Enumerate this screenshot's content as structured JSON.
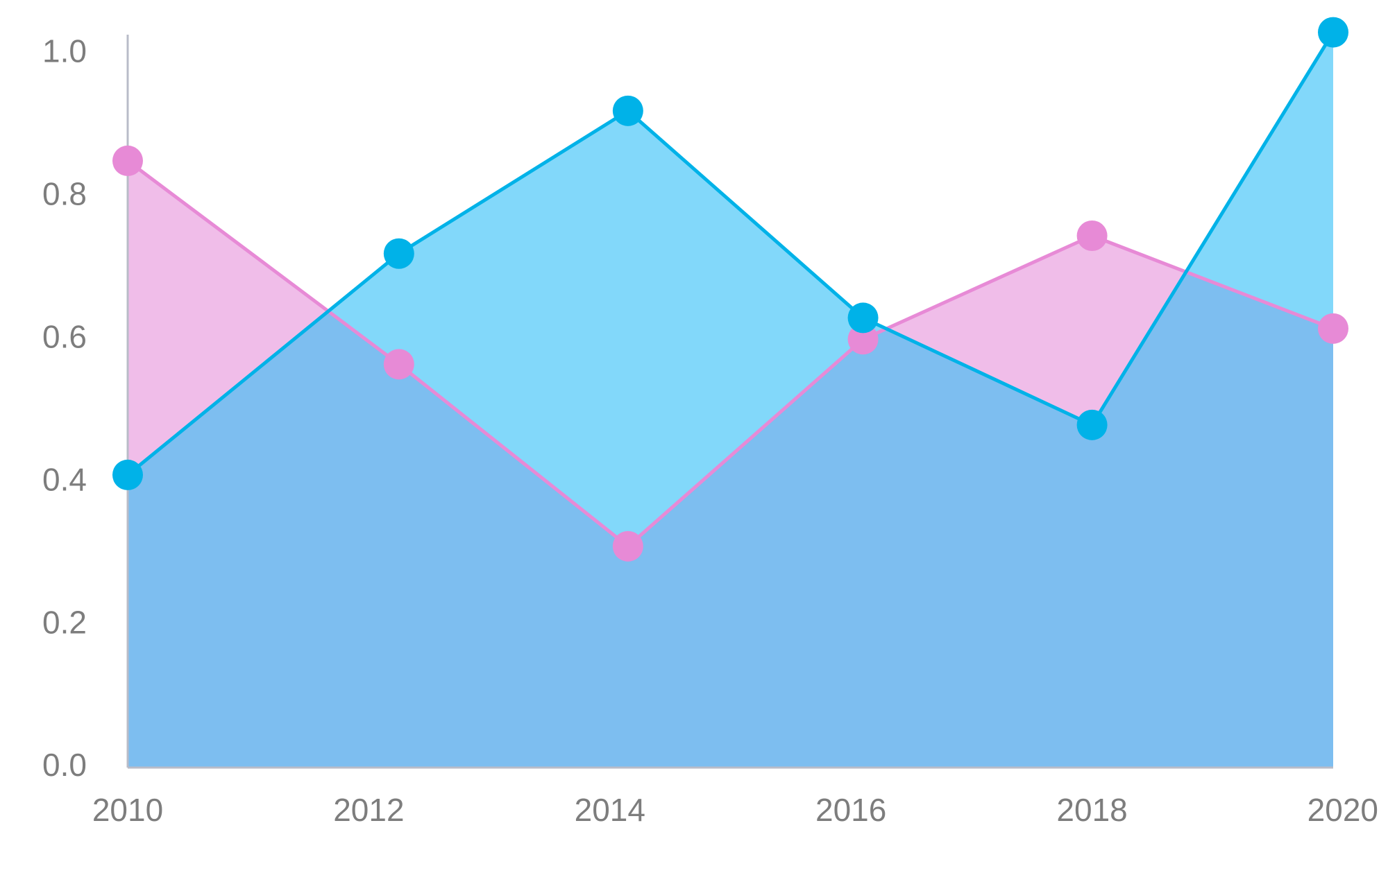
{
  "chart_data": {
    "type": "area",
    "x": [
      2010,
      2012.25,
      2014.15,
      2016.1,
      2018,
      2020
    ],
    "series": [
      {
        "color": "#e78ad6",
        "fill": "#f0bde9",
        "values": [
          0.85,
          0.565,
          0.31,
          0.6,
          0.745,
          0.615
        ]
      },
      {
        "color": "#00b2e8",
        "fill": "#82d8fa",
        "values": [
          0.41,
          0.72,
          0.92,
          0.63,
          0.48,
          1.03
        ]
      }
    ],
    "overlap_fill": "#7dbef0",
    "xlim": [
      2010,
      2020
    ],
    "ylim": [
      0,
      1.05
    ],
    "x_ticks": [
      {
        "value": 2010,
        "label": "2010"
      },
      {
        "value": 2012,
        "label": "2012"
      },
      {
        "value": 2014,
        "label": "2014"
      },
      {
        "value": 2016,
        "label": "2016"
      },
      {
        "value": 2018,
        "label": "2018"
      },
      {
        "value": 2020,
        "label": "2020"
      }
    ],
    "y_ticks": [
      {
        "value": 0,
        "label": "0.0"
      },
      {
        "value": 0.2,
        "label": "0.2"
      },
      {
        "value": 0.4,
        "label": "0.4"
      },
      {
        "value": 0.6,
        "label": "0.6"
      },
      {
        "value": 0.8,
        "label": "0.8"
      },
      {
        "value": 1.0,
        "label": "1.0"
      }
    ],
    "title": "",
    "xlabel": "",
    "ylabel": "",
    "grid": false,
    "legend": "none"
  }
}
